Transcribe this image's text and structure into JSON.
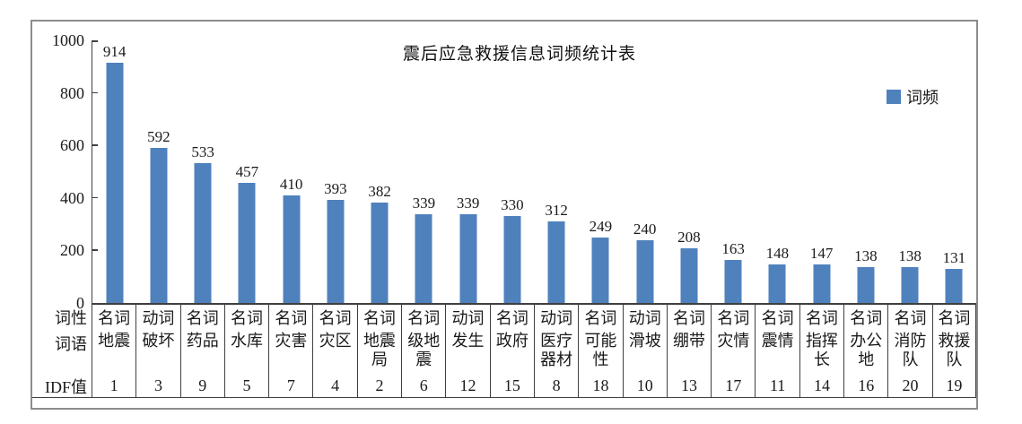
{
  "figure": {
    "background": "#ffffff",
    "border_color": "#8c8c8c",
    "axis_color": "#3f3f3f"
  },
  "chart_data": {
    "type": "bar",
    "title": "震后应急救援信息词频统计表",
    "legend": {
      "label": "词频",
      "position": "right",
      "color": "#4F81BD"
    },
    "xlabel": "",
    "ylabel": "",
    "ylim": [
      0,
      1000
    ],
    "yticks": [
      0,
      200,
      400,
      600,
      800,
      1000
    ],
    "grid": false,
    "bar_color": "#4F81BD",
    "categories": [
      "地震",
      "破坏",
      "药品",
      "水库",
      "灾害",
      "灾区",
      "地震局",
      "级地震",
      "发生",
      "政府",
      "医疗器材",
      "可能性",
      "滑坡",
      "绷带",
      "灾情",
      "震情",
      "指挥长",
      "办公地",
      "消防队",
      "救援队"
    ],
    "values": [
      914,
      592,
      533,
      457,
      410,
      393,
      382,
      339,
      339,
      330,
      312,
      249,
      240,
      208,
      163,
      148,
      147,
      138,
      138,
      131
    ],
    "series": [
      {
        "name": "词频",
        "values": [
          914,
          592,
          533,
          457,
          410,
          393,
          382,
          339,
          339,
          330,
          312,
          249,
          240,
          208,
          163,
          148,
          147,
          138,
          138,
          131
        ]
      }
    ]
  },
  "table": {
    "row_labels": {
      "pos": "词性",
      "word": "词语",
      "idf": "IDF值"
    },
    "rows": {
      "pos": [
        "名词",
        "动词",
        "名词",
        "名词",
        "名词",
        "名词",
        "名词",
        "名词",
        "动词",
        "名词",
        "动词",
        "名词",
        "动词",
        "名词",
        "名词",
        "名词",
        "名词",
        "名词",
        "名词",
        "名词"
      ],
      "word": [
        "地震",
        "破坏",
        "药品",
        "水库",
        "灾害",
        "灾区",
        "地震局",
        "级地震",
        "发生",
        "政府",
        "医疗器材",
        "可能性",
        "滑坡",
        "绷带",
        "灾情",
        "震情",
        "指挥长",
        "办公地",
        "消防队",
        "救援队"
      ],
      "idf": [
        1,
        3,
        9,
        5,
        7,
        4,
        2,
        6,
        12,
        15,
        8,
        18,
        10,
        13,
        17,
        11,
        14,
        16,
        20,
        19
      ]
    }
  }
}
